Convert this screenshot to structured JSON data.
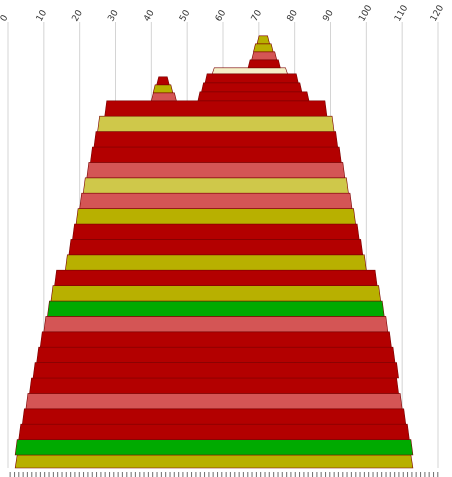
{
  "chart_data": {
    "type": "area",
    "description_free": true,
    "x_axis": {
      "position": "top",
      "range": [
        0,
        120
      ],
      "ticks": [
        0,
        10,
        20,
        30,
        40,
        50,
        60,
        70,
        80,
        90,
        100,
        110,
        120
      ],
      "tick_labels": [
        "0",
        "10",
        "20",
        "30",
        "40",
        "50",
        "60",
        "70",
        "80",
        "90",
        "100",
        "110",
        "120"
      ],
      "label_rotation": "diagonal"
    },
    "grid": true,
    "colors": {
      "dark_red": "#b30000",
      "light_red": "#d45555",
      "olive": "#b8b000",
      "light_olive": "#cfc84a",
      "green": "#00aa00",
      "cream": "#f5f0c8"
    },
    "layers": [
      {
        "left": 2,
        "right": 113,
        "color": "olive"
      },
      {
        "left": 2,
        "right": 113,
        "color": "green"
      },
      {
        "left": 3,
        "right": 112,
        "color": "dark_red"
      },
      {
        "left": 4,
        "right": 111,
        "color": "dark_red"
      },
      {
        "left": 5,
        "right": 110,
        "color": "light_red"
      },
      {
        "left": 6,
        "right": 109,
        "color": "dark_red"
      },
      {
        "left": 7,
        "right": 109,
        "color": "dark_red"
      },
      {
        "left": 8,
        "right": 108,
        "color": "dark_red"
      },
      {
        "left": 9,
        "right": 107,
        "color": "dark_red"
      },
      {
        "left": 10,
        "right": 106,
        "color": "light_red"
      },
      {
        "left": 11,
        "right": 105,
        "color": "green"
      },
      {
        "left": 12,
        "right": 104,
        "color": "olive"
      },
      {
        "left": 13,
        "right": 103,
        "color": "dark_red"
      },
      {
        "left": 16,
        "right": 100,
        "color": "olive"
      },
      {
        "left": 17,
        "right": 99,
        "color": "dark_red"
      },
      {
        "left": 18,
        "right": 98,
        "color": "dark_red"
      },
      {
        "left": 19,
        "right": 97,
        "color": "olive"
      },
      {
        "left": 20,
        "right": 96,
        "color": "light_red"
      },
      {
        "left": 21,
        "right": 95,
        "color": "light_olive"
      },
      {
        "left": 22,
        "right": 94,
        "color": "light_red"
      },
      {
        "left": 23,
        "right": 93,
        "color": "dark_red"
      },
      {
        "left": 24,
        "right": 92,
        "color": "dark_red"
      },
      {
        "left": 25,
        "right": 91,
        "color": "light_olive"
      },
      {
        "left": 27,
        "right": 89,
        "color": "dark_red"
      }
    ],
    "upper_segments": [
      {
        "left": 53,
        "right": 84,
        "color": "dark_red"
      },
      {
        "left": 54,
        "right": 82,
        "color": "dark_red"
      },
      {
        "left": 55,
        "right": 81,
        "color": "dark_red"
      },
      {
        "left": 57,
        "right": 78,
        "color": "cream"
      }
    ],
    "left_peak": [
      {
        "left": 40,
        "right": 47,
        "color": "light_red"
      },
      {
        "left": 40.5,
        "right": 46,
        "color": "olive"
      },
      {
        "left": 41.5,
        "right": 45,
        "color": "dark_red"
      }
    ],
    "top_peak": [
      {
        "left": 67,
        "right": 76,
        "color": "dark_red"
      },
      {
        "left": 68,
        "right": 75,
        "color": "light_red"
      },
      {
        "left": 68.5,
        "right": 74,
        "color": "olive"
      },
      {
        "left": 69.5,
        "right": 73,
        "color": "olive"
      }
    ],
    "bottom_axis_text": "||||||||||||||||||||||||||||||||||||||||||||||||||||||||||||||||||||||||||||||||||||||||||||||||||||"
  }
}
